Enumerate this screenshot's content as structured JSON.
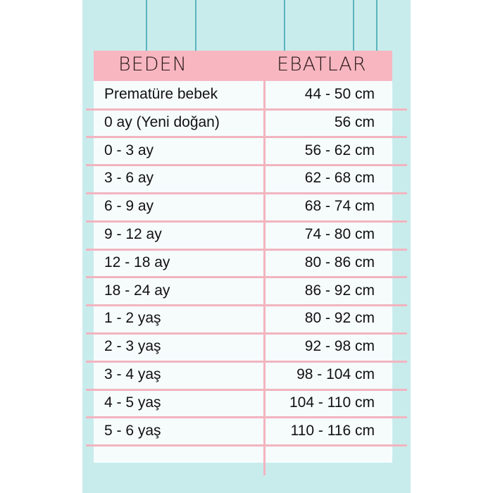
{
  "colors": {
    "background": "#c8ecec",
    "header": "#f7b6c0",
    "grid_lines": "#f2b4bf",
    "table": "#f6fcfc"
  },
  "header": {
    "size": "BEDEN",
    "measurements": "EBATLAR"
  },
  "rows": [
    {
      "size": "Prematüre bebek",
      "measure": "44 - 50 cm"
    },
    {
      "size": "0 ay (Yeni doğan)",
      "measure": "56 cm"
    },
    {
      "size": "0 - 3 ay",
      "measure": "56 - 62 cm"
    },
    {
      "size": "3 - 6 ay",
      "measure": "62 - 68 cm"
    },
    {
      "size": "6 - 9 ay",
      "measure": "68 - 74 cm"
    },
    {
      "size": "9 - 12 ay",
      "measure": "74 - 80 cm"
    },
    {
      "size": "12 - 18 ay",
      "measure": "80 - 86 cm"
    },
    {
      "size": "18 - 24 ay",
      "measure": "86 - 92 cm"
    },
    {
      "size": "1 - 2 yaş",
      "measure": "80 - 92 cm"
    },
    {
      "size": "2 - 3 yaş",
      "measure": "92 - 98 cm"
    },
    {
      "size": "3 - 4 yaş",
      "measure": "98 - 104 cm"
    },
    {
      "size": "4 - 5 yaş",
      "measure": "104 - 110 cm"
    },
    {
      "size": "5 - 6 yaş",
      "measure": "110 - 116 cm"
    }
  ]
}
